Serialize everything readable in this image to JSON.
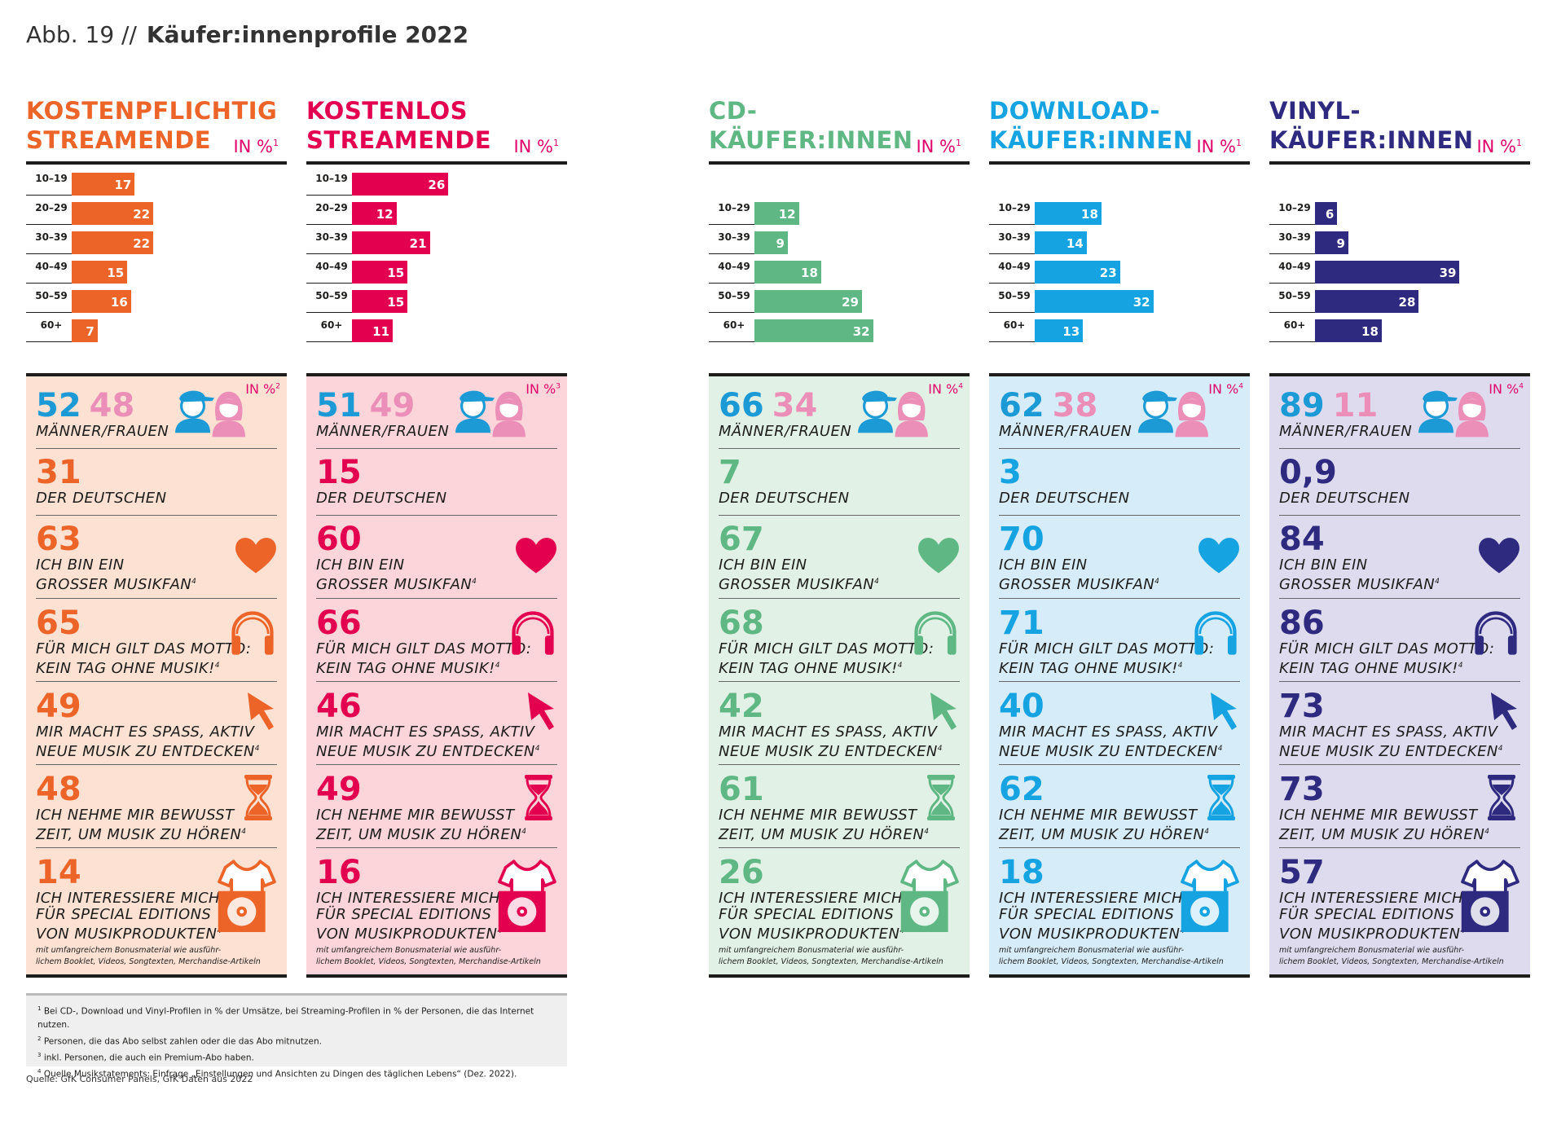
{
  "figure": {
    "number": "Abb. 19 //",
    "title": "Käufer:innenprofile 2022"
  },
  "unit_label": "IN %",
  "chart_data": [
    {
      "type": "bar",
      "group": "KOSTENPFLICHTIG STREAMENDE",
      "color": "#ec6428",
      "bg": "#fde1d3",
      "categories": [
        "10–19",
        "20–29",
        "30–39",
        "40–49",
        "50–59",
        "60+"
      ],
      "values": [
        17,
        22,
        22,
        15,
        16,
        7
      ],
      "unit_ref": "1",
      "panel_ref": "2",
      "men": "52",
      "women": "48",
      "deutschen": "31",
      "musikfan": "63",
      "motto": "65",
      "entdecken": "49",
      "zeit": "48",
      "special": "14"
    },
    {
      "type": "bar",
      "group": "KOSTENLOS STREAMENDE",
      "color": "#e2004f",
      "bg": "#fbd5d9",
      "categories": [
        "10–19",
        "20–29",
        "30–39",
        "40–49",
        "50–59",
        "60+"
      ],
      "values": [
        26,
        12,
        21,
        15,
        15,
        11
      ],
      "unit_ref": "1",
      "panel_ref": "3",
      "men": "51",
      "women": "49",
      "deutschen": "15",
      "musikfan": "60",
      "motto": "66",
      "entdecken": "46",
      "zeit": "49",
      "special": "16"
    },
    {
      "type": "bar",
      "group": "CD-KÄUFER:INNEN",
      "color": "#5fb884",
      "bg": "#e2f1e5",
      "categories": [
        "10–29",
        "30–39",
        "40–49",
        "50–59",
        "60+"
      ],
      "values": [
        12,
        9,
        18,
        29,
        32
      ],
      "unit_ref": "1",
      "panel_ref": "4",
      "men": "66",
      "women": "34",
      "deutschen": "7",
      "musikfan": "67",
      "motto": "68",
      "entdecken": "42",
      "zeit": "61",
      "special": "26"
    },
    {
      "type": "bar",
      "group": "DOWNLOAD-KÄUFER:INNEN",
      "color": "#16a3e1",
      "bg": "#d7ecf9",
      "categories": [
        "10–29",
        "30–39",
        "40–49",
        "50–59",
        "60+"
      ],
      "values": [
        18,
        14,
        23,
        32,
        13
      ],
      "unit_ref": "1",
      "panel_ref": "4",
      "men": "62",
      "women": "38",
      "deutschen": "3",
      "musikfan": "70",
      "motto": "71",
      "entdecken": "40",
      "zeit": "62",
      "special": "18"
    },
    {
      "type": "bar",
      "group": "VINYL-KÄUFER:INNEN",
      "color": "#2d2a7f",
      "bg": "#dedbef",
      "categories": [
        "10–29",
        "30–39",
        "40–49",
        "50–59",
        "60+"
      ],
      "values": [
        6,
        9,
        39,
        28,
        18
      ],
      "unit_ref": "1",
      "panel_ref": "4",
      "men": "89",
      "women": "11",
      "deutschen": "0,9",
      "musikfan": "84",
      "motto": "86",
      "entdecken": "73",
      "zeit": "73",
      "special": "57"
    }
  ],
  "headings": [
    {
      "l1": "KOSTENPFLICHTIG",
      "l2": "STREAMENDE"
    },
    {
      "l1": "KOSTENLOS",
      "l2": "STREAMENDE"
    },
    {
      "l1": "CD-",
      "l2": "KÄUFER:INNEN"
    },
    {
      "l1": "DOWNLOAD-",
      "l2": "KÄUFER:INNEN"
    },
    {
      "l1": "VINYL-",
      "l2": "KÄUFER:INNEN"
    }
  ],
  "labels": {
    "gender": "MÄNNER/FRAUEN",
    "deutschen": "DER DEUTSCHEN",
    "musikfan_1": "ICH BIN EIN",
    "musikfan_2": "GROSSER MUSIKFAN",
    "motto_1": "FÜR MICH GILT DAS MOTTO:",
    "motto_2": "KEIN TAG OHNE MUSIK!",
    "entdecken_1": "MIR MACHT ES SPASS, AKTIV",
    "entdecken_2": "NEUE MUSIK ZU ENTDECKEN",
    "zeit_1": "ICH NEHME MIR BEWUSST",
    "zeit_2": "ZEIT, UM MUSIK ZU HÖREN",
    "special_1": "ICH INTERESSIERE MICH",
    "special_2": "FÜR SPECIAL EDITIONS",
    "special_3": "VON MUSIKPRODUKTEN",
    "special_small_1": "mit umfangreichem Bonusmaterial wie ausführ-",
    "special_small_2": "lichem Booklet, Videos, Songtexten, Merchandise-Artikeln",
    "statement_ref": "4"
  },
  "colors": {
    "men": "#1c9ad6",
    "women": "#ec8fb8",
    "dark": "#1d1d1b",
    "unit": "#e0006a"
  },
  "notes": [
    {
      "ref": "1",
      "text": "Bei CD-, Download und Vinyl-Profilen in % der Umsätze, bei Streaming-Profilen in % der Personen, die das Internet nutzen."
    },
    {
      "ref": "2",
      "text": "Personen, die das Abo selbst zahlen oder die das Abo mitnutzen."
    },
    {
      "ref": "3",
      "text": "inkl. Personen, die auch ein Premium-Abo haben."
    },
    {
      "ref": "4",
      "text": "Quelle Musikstatements: Einfrage „Einstellungen und Ansichten zu Dingen des täglichen Lebens“ (Dez. 2022)."
    }
  ],
  "source": "Quelle: GfK Consumer Panels, GfK Daten aus 2022"
}
